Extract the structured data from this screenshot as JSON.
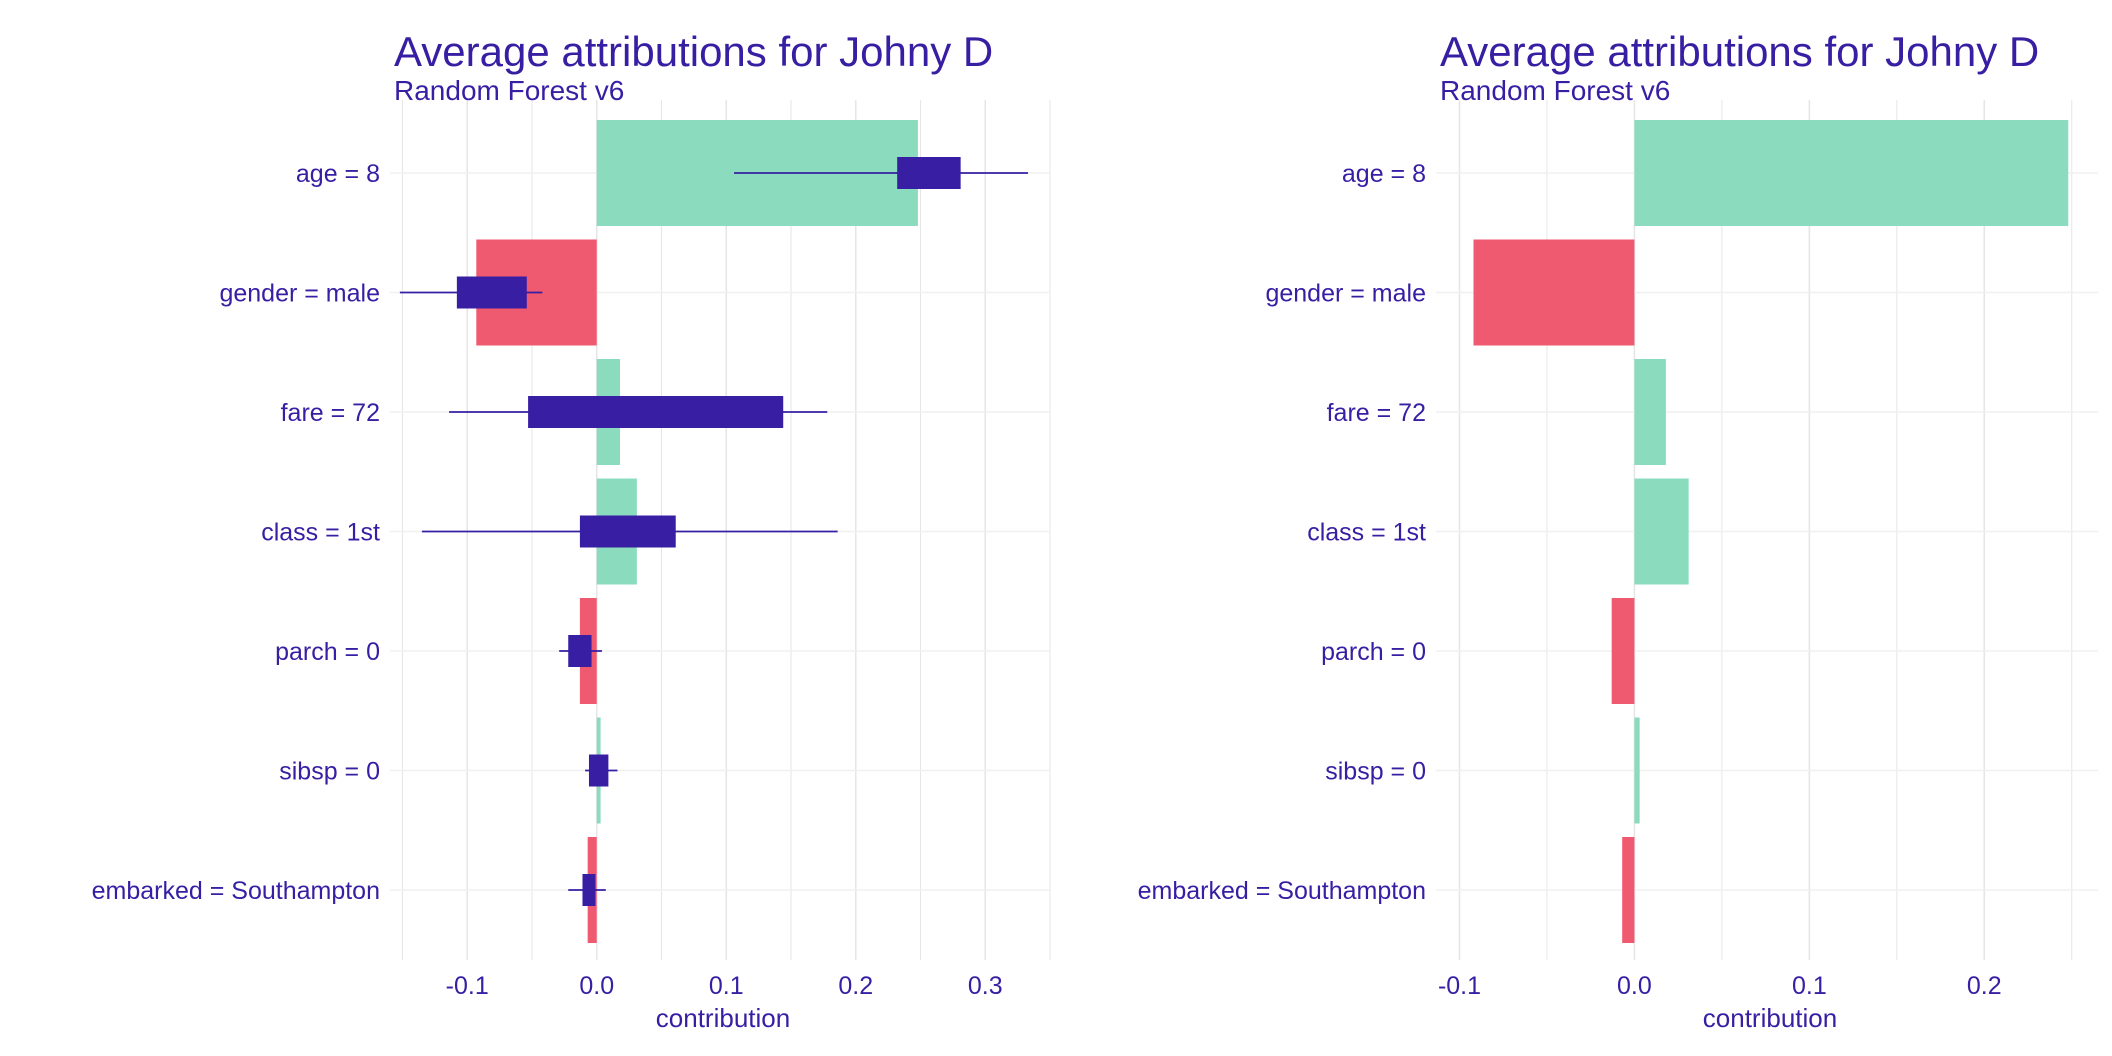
{
  "colors": {
    "positive": "#8bdcbe",
    "negative": "#f05a71",
    "boxplot": "#371ea3",
    "text": "#371ea3",
    "grid": "#e6e6e6",
    "background": "#ffffff"
  },
  "chart_data": [
    {
      "type": "bar",
      "orientation": "horizontal",
      "title": "Average attributions for Johny D",
      "subtitle": "Random Forest v6",
      "xlabel": "contribution",
      "ylabel": "",
      "xlim": [
        -0.155,
        0.35
      ],
      "x_ticks": [
        -0.1,
        0.0,
        0.1,
        0.2,
        0.3
      ],
      "x_tick_labels": [
        "-0.1",
        "0.0",
        "0.1",
        "0.2",
        "0.3"
      ],
      "grid": true,
      "legend": "none",
      "categories": [
        "age = 8",
        "gender = male",
        "fare = 72",
        "class = 1st",
        "parch = 0",
        "sibsp = 0",
        "embarked = Southampton"
      ],
      "values": [
        0.248,
        -0.093,
        0.018,
        0.031,
        -0.013,
        0.003,
        -0.007
      ],
      "boxplots": [
        {
          "whisker_low": 0.106,
          "q1": 0.232,
          "q3": 0.281,
          "whisker_high": 0.333
        },
        {
          "whisker_low": -0.152,
          "q1": -0.108,
          "q3": -0.054,
          "whisker_high": -0.042
        },
        {
          "whisker_low": -0.114,
          "q1": -0.053,
          "q3": 0.144,
          "whisker_high": 0.178
        },
        {
          "whisker_low": -0.135,
          "q1": -0.013,
          "q3": 0.061,
          "whisker_high": 0.186
        },
        {
          "whisker_low": -0.029,
          "q1": -0.022,
          "q3": -0.004,
          "whisker_high": 0.004
        },
        {
          "whisker_low": -0.009,
          "q1": -0.006,
          "q3": 0.009,
          "whisker_high": 0.016
        },
        {
          "whisker_low": -0.022,
          "q1": -0.011,
          "q3": -0.001,
          "whisker_high": 0.007
        }
      ]
    },
    {
      "type": "bar",
      "orientation": "horizontal",
      "title": "Average attributions for Johny D",
      "subtitle": "Random Forest v6",
      "xlabel": "contribution",
      "ylabel": "",
      "xlim": [
        -0.11,
        0.265
      ],
      "x_ticks": [
        -0.1,
        0.0,
        0.1,
        0.2
      ],
      "x_tick_labels": [
        "-0.1",
        "0.0",
        "0.1",
        "0.2"
      ],
      "grid": true,
      "legend": "none",
      "categories": [
        "age = 8",
        "gender = male",
        "fare = 72",
        "class = 1st",
        "parch = 0",
        "sibsp = 0",
        "embarked = Southampton"
      ],
      "values": [
        0.248,
        -0.092,
        0.018,
        0.031,
        -0.013,
        0.003,
        -0.007
      ]
    }
  ]
}
